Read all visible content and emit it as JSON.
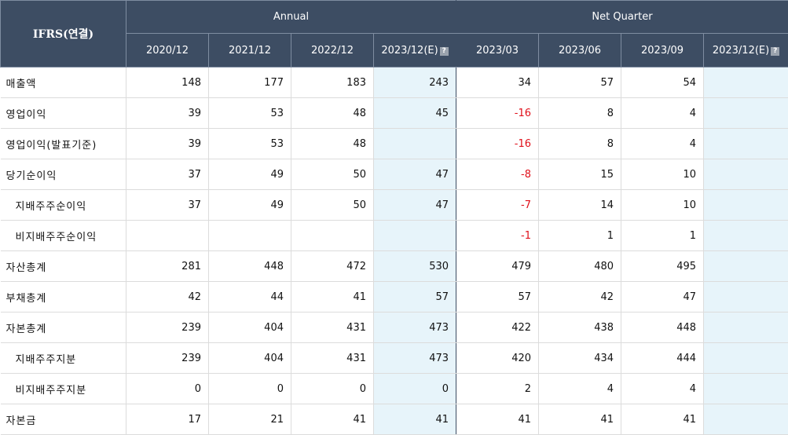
{
  "header": {
    "corner": "IFRS(연결)",
    "group_annual": "Annual",
    "group_quarter": "Net Quarter",
    "periods": [
      "2020/12",
      "2021/12",
      "2022/12",
      "2023/12(E)",
      "2023/03",
      "2023/06",
      "2023/09",
      "2023/12(E)"
    ],
    "help_glyph": "?"
  },
  "rows": [
    {
      "label": "매출액",
      "values": [
        "148",
        "177",
        "183",
        "243",
        "34",
        "57",
        "54",
        ""
      ]
    },
    {
      "label": "영업이익",
      "values": [
        "39",
        "53",
        "48",
        "45",
        "-16",
        "8",
        "4",
        ""
      ]
    },
    {
      "label": "영업이익(발표기준)",
      "values": [
        "39",
        "53",
        "48",
        "",
        "-16",
        "8",
        "4",
        ""
      ]
    },
    {
      "label": "당기순이익",
      "values": [
        "37",
        "49",
        "50",
        "47",
        "-8",
        "15",
        "10",
        ""
      ]
    },
    {
      "label": "지배주주순이익",
      "values": [
        "37",
        "49",
        "50",
        "47",
        "-7",
        "14",
        "10",
        ""
      ]
    },
    {
      "label": "비지배주주순이익",
      "values": [
        "",
        "",
        "",
        "",
        "-1",
        "1",
        "1",
        ""
      ]
    },
    {
      "label": "자산총계",
      "values": [
        "281",
        "448",
        "472",
        "530",
        "479",
        "480",
        "495",
        ""
      ]
    },
    {
      "label": "부채총계",
      "values": [
        "42",
        "44",
        "41",
        "57",
        "57",
        "42",
        "47",
        ""
      ]
    },
    {
      "label": "자본총계",
      "values": [
        "239",
        "404",
        "431",
        "473",
        "422",
        "438",
        "448",
        ""
      ]
    },
    {
      "label": "지배주주지분",
      "values": [
        "239",
        "404",
        "431",
        "473",
        "420",
        "434",
        "444",
        ""
      ]
    },
    {
      "label": "비지배주주지분",
      "values": [
        "0",
        "0",
        "0",
        "0",
        "2",
        "4",
        "4",
        ""
      ]
    },
    {
      "label": "자본금",
      "values": [
        "17",
        "21",
        "41",
        "41",
        "41",
        "41",
        "41",
        ""
      ]
    }
  ],
  "colors": {
    "header_bg": "#3d4d63",
    "estimate_bg": "#e7f4fa",
    "negative": "#e0101a"
  }
}
